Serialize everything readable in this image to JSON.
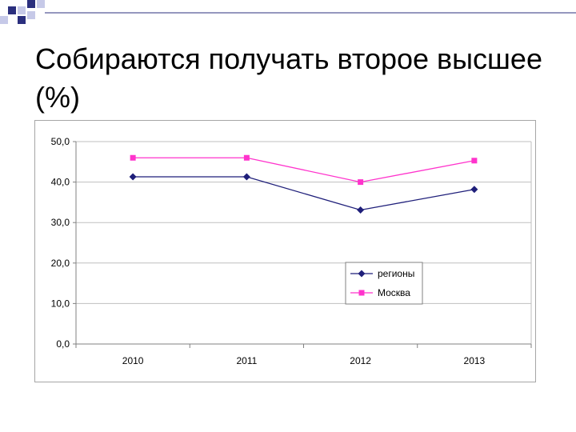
{
  "slide": {
    "title": "Собираются получать второе высшее (%)"
  },
  "colors": {
    "deco_dark": "#2b2f7e",
    "deco_light": "#c6c9e8",
    "deco_line": "#2b2f7e"
  },
  "chart_data": {
    "type": "line",
    "categories": [
      "2010",
      "2011",
      "2012",
      "2013"
    ],
    "series": [
      {
        "name": "регионы",
        "values": [
          41.3,
          41.3,
          33.1,
          38.2
        ],
        "color": "#1f1f7a",
        "marker": "diamond"
      },
      {
        "name": "Москва",
        "values": [
          46.0,
          46.0,
          40.0,
          45.3
        ],
        "color": "#ff33cc",
        "marker": "square"
      }
    ],
    "ylim": [
      0,
      50
    ],
    "yticks": [
      "0,0",
      "10,0",
      "20,0",
      "30,0",
      "40,0",
      "50,0"
    ],
    "grid": true,
    "legend": "inside-lower-right"
  }
}
